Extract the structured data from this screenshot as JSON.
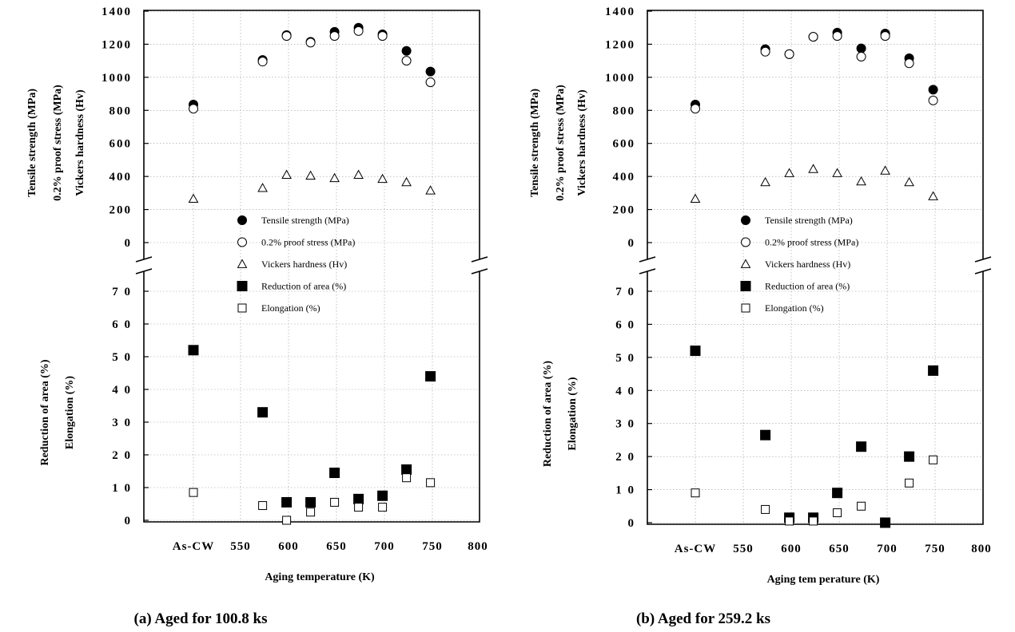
{
  "chart_data": [
    {
      "type": "scatter",
      "caption": "(a) Aged for 100.8 ks",
      "xlabel": "Aging temperature (K)",
      "x_ticks": [
        "As-CW",
        "550",
        "600",
        "650",
        "700",
        "750",
        "800"
      ],
      "x_range": [
        500,
        800
      ],
      "top_panel": {
        "ylabels": [
          "Tensile strength (MPa)",
          "0.2% proof stress (MPa)",
          "Vickers hardness (Hv)"
        ],
        "yticks": [
          "1400",
          "1200",
          "1000",
          "800",
          "600",
          "400",
          "200",
          "0"
        ],
        "ylim": [
          0,
          1400
        ],
        "series": [
          {
            "name": "Tensile strength (MPa)",
            "marker": "filled-circle",
            "x": [
              "As-CW",
              573,
              598,
              623,
              648,
              673,
              698,
              723,
              748
            ],
            "y": [
              835,
              1105,
              1255,
              1215,
              1275,
              1300,
              1260,
              1160,
              1035
            ]
          },
          {
            "name": "0.2% proof stress (MPa)",
            "marker": "open-circle",
            "x": [
              "As-CW",
              573,
              598,
              623,
              648,
              673,
              698,
              723,
              748
            ],
            "y": [
              810,
              1095,
              1250,
              1210,
              1250,
              1280,
              1250,
              1100,
              970
            ]
          },
          {
            "name": "Vickers hardness (Hv)",
            "marker": "open-triangle",
            "x": [
              "As-CW",
              573,
              598,
              623,
              648,
              673,
              698,
              723,
              748
            ],
            "y": [
              265,
              330,
              410,
              405,
              390,
              410,
              385,
              365,
              315
            ]
          }
        ]
      },
      "bottom_panel": {
        "ylabels": [
          "Reduction of area (%)",
          "Elongation (%)"
        ],
        "yticks": [
          "70",
          "60",
          "50",
          "40",
          "30",
          "20",
          "10",
          "0"
        ],
        "ylim": [
          0,
          70
        ],
        "series": [
          {
            "name": "Reduction of area (%)",
            "marker": "filled-square",
            "x": [
              "As-CW",
              573,
              598,
              623,
              648,
              673,
              698,
              723,
              748
            ],
            "y": [
              52,
              33,
              5.5,
              5.5,
              14.5,
              6.5,
              7.5,
              15.5,
              44
            ]
          },
          {
            "name": "Elongation (%)",
            "marker": "open-square",
            "x": [
              "As-CW",
              573,
              598,
              623,
              648,
              673,
              698,
              723,
              748
            ],
            "y": [
              8.5,
              4.5,
              0,
              2.5,
              5.5,
              4,
              4,
              13,
              11.5
            ]
          }
        ]
      }
    },
    {
      "type": "scatter",
      "caption": "(b) Aged for 259.2 ks",
      "xlabel": "Aging tem perature (K)",
      "x_ticks": [
        "As-CW",
        "550",
        "600",
        "650",
        "700",
        "750",
        "800"
      ],
      "x_range": [
        500,
        800
      ],
      "top_panel": {
        "ylabels": [
          "Tensile strength (MPa)",
          "0.2% proof stress (MPa)",
          "Vickers hardness (Hv)"
        ],
        "yticks": [
          "1400",
          "1200",
          "1000",
          "800",
          "600",
          "400",
          "200",
          "0"
        ],
        "ylim": [
          0,
          1400
        ],
        "series": [
          {
            "name": "Tensile strength (MPa)",
            "marker": "filled-circle",
            "x": [
              "As-CW",
              573,
              598,
              623,
              648,
              673,
              698,
              723,
              748
            ],
            "y": [
              835,
              1170,
              1140,
              1245,
              1270,
              1175,
              1265,
              1115,
              925
            ]
          },
          {
            "name": "0.2% proof stress (MPa)",
            "marker": "open-circle",
            "x": [
              "As-CW",
              573,
              598,
              623,
              648,
              673,
              698,
              723,
              748
            ],
            "y": [
              810,
              1155,
              1140,
              1245,
              1250,
              1125,
              1250,
              1085,
              860
            ]
          },
          {
            "name": "Vickers hardness (Hv)",
            "marker": "open-triangle",
            "x": [
              "As-CW",
              573,
              598,
              623,
              648,
              673,
              698,
              723,
              748
            ],
            "y": [
              265,
              365,
              420,
              445,
              420,
              370,
              435,
              365,
              280
            ]
          }
        ]
      },
      "bottom_panel": {
        "ylabels": [
          "Reduction of area (%)",
          "Elongation (%)"
        ],
        "yticks": [
          "70",
          "60",
          "50",
          "40",
          "30",
          "20",
          "10",
          "0"
        ],
        "ylim": [
          0,
          70
        ],
        "series": [
          {
            "name": "Reduction of area (%)",
            "marker": "filled-square",
            "x": [
              "As-CW",
              573,
              598,
              623,
              648,
              673,
              698,
              723,
              748
            ],
            "y": [
              52,
              26.5,
              1.5,
              1.5,
              9,
              23,
              0,
              20,
              46
            ]
          },
          {
            "name": "Elongation (%)",
            "marker": "open-square",
            "x": [
              "As-CW",
              573,
              598,
              623,
              648,
              673,
              698,
              723,
              748
            ],
            "y": [
              9,
              4,
              0.5,
              0.5,
              3,
              5,
              null,
              12,
              19
            ]
          }
        ]
      }
    }
  ]
}
